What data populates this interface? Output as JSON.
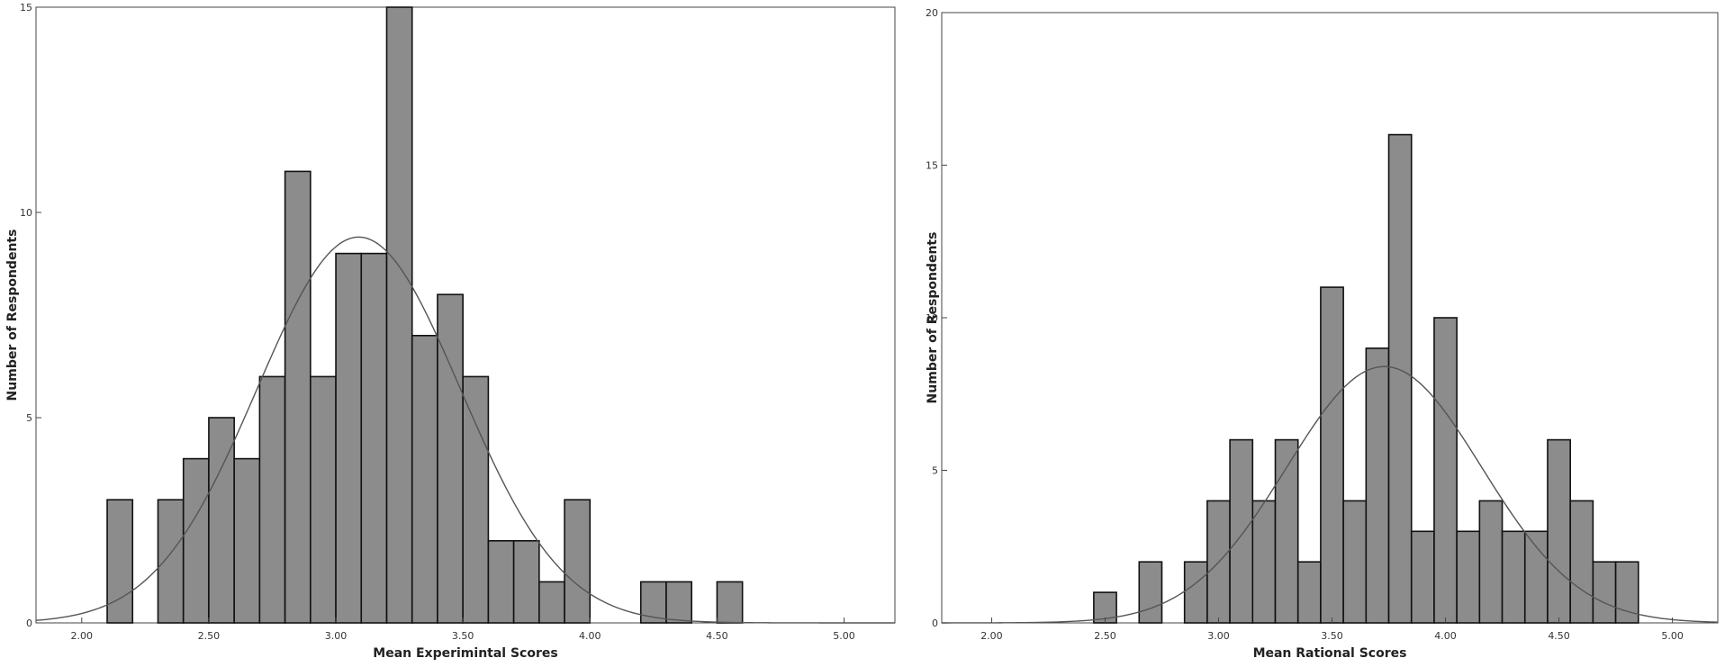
{
  "chart_data": [
    {
      "type": "bar",
      "subtype": "histogram",
      "xlabel": "Mean Experimintal Scores",
      "ylabel": "Number of Respondents",
      "xlim": [
        1.82,
        5.2
      ],
      "ylim": [
        0,
        15.0
      ],
      "x_ticks": [
        2.0,
        2.5,
        3.0,
        3.5,
        4.0,
        4.5,
        5.0
      ],
      "x_tick_labels": [
        "2.00",
        "2.50",
        "3.00",
        "3.50",
        "4.00",
        "4.50",
        "5.00"
      ],
      "y_ticks": [
        0,
        5,
        10,
        15
      ],
      "y_tick_labels": [
        "0",
        "5",
        "10",
        "15"
      ],
      "bin_width": 0.1,
      "bins_x": [
        2.15,
        2.35,
        2.45,
        2.55,
        2.65,
        2.75,
        2.85,
        2.95,
        3.05,
        3.15,
        3.25,
        3.35,
        3.45,
        3.55,
        3.65,
        3.75,
        3.85,
        3.95,
        4.25,
        4.35,
        4.55
      ],
      "values": [
        3,
        3,
        4,
        5,
        4,
        6,
        11,
        6,
        9,
        9,
        15,
        7,
        8,
        6,
        2,
        2,
        1,
        3,
        1,
        1,
        1
      ],
      "normal_curve": {
        "mean": 3.09,
        "sd": 0.4,
        "peak": 9.4
      },
      "bar_color": "#8c8c8c",
      "grid": false
    },
    {
      "type": "bar",
      "subtype": "histogram",
      "xlabel": "Mean Rational Scores",
      "ylabel": "Number of Respondents",
      "xlim": [
        1.78,
        5.2
      ],
      "ylim": [
        0,
        20.0
      ],
      "x_ticks": [
        2.0,
        2.5,
        3.0,
        3.5,
        4.0,
        4.5,
        5.0
      ],
      "x_tick_labels": [
        "2.00",
        "2.50",
        "3.00",
        "3.50",
        "4.00",
        "4.50",
        "5.00"
      ],
      "y_ticks": [
        0,
        5,
        10,
        15,
        20
      ],
      "y_tick_labels": [
        "0",
        "5",
        "10",
        "15",
        "20"
      ],
      "bin_width": 0.1,
      "bins_x": [
        2.5,
        2.7,
        2.9,
        3.0,
        3.1,
        3.2,
        3.3,
        3.4,
        3.5,
        3.6,
        3.7,
        3.8,
        3.9,
        4.0,
        4.1,
        4.2,
        4.3,
        4.4,
        4.5,
        4.6,
        4.7,
        4.8
      ],
      "values": [
        1,
        2,
        2,
        4,
        6,
        4,
        6,
        2,
        11,
        4,
        9,
        16,
        3,
        10,
        3,
        4,
        3,
        3,
        6,
        4,
        2,
        2
      ],
      "normal_curve": {
        "mean": 3.73,
        "sd": 0.43,
        "peak": 8.4
      },
      "bar_color": "#8c8c8c",
      "grid": false
    }
  ]
}
